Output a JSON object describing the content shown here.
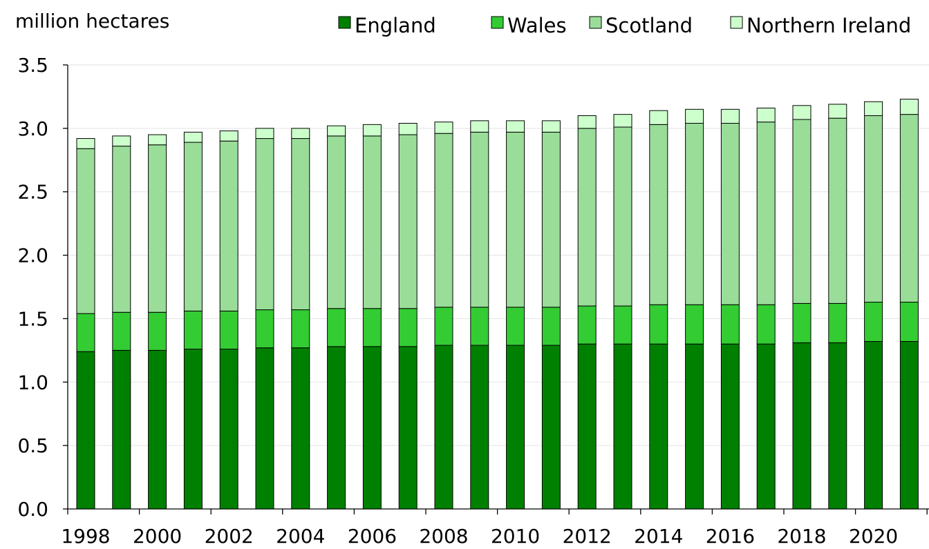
{
  "chart_data": {
    "type": "bar",
    "stacked": true,
    "title": "",
    "xlabel": "",
    "ylabel": "million hectares",
    "ylim": [
      0,
      3.5
    ],
    "yticks": [
      "0.0",
      "0.5",
      "1.0",
      "1.5",
      "2.0",
      "2.5",
      "3.0",
      "3.5"
    ],
    "categories": [
      "1998",
      "1999",
      "2000",
      "2001",
      "2002",
      "2003",
      "2004",
      "2005",
      "2006",
      "2007",
      "2008",
      "2009",
      "2010",
      "2011",
      "2012",
      "2013",
      "2014",
      "2015",
      "2016",
      "2017",
      "2018",
      "2019",
      "2020",
      "2021"
    ],
    "x_tick_labels": [
      "1998",
      "2000",
      "2002",
      "2004",
      "2006",
      "2008",
      "2010",
      "2012",
      "2014",
      "2016",
      "2018",
      "2020"
    ],
    "grid": "horizontal",
    "legend_position": "top",
    "series": [
      {
        "name": "England",
        "color": "#008000",
        "values": [
          1.24,
          1.25,
          1.25,
          1.26,
          1.26,
          1.27,
          1.27,
          1.28,
          1.28,
          1.28,
          1.29,
          1.29,
          1.29,
          1.29,
          1.3,
          1.3,
          1.3,
          1.3,
          1.3,
          1.3,
          1.31,
          1.31,
          1.32,
          1.32
        ]
      },
      {
        "name": "Wales",
        "color": "#33CC33",
        "values": [
          0.3,
          0.3,
          0.3,
          0.3,
          0.3,
          0.3,
          0.3,
          0.3,
          0.3,
          0.3,
          0.3,
          0.3,
          0.3,
          0.3,
          0.3,
          0.3,
          0.31,
          0.31,
          0.31,
          0.31,
          0.31,
          0.31,
          0.31,
          0.31
        ]
      },
      {
        "name": "Scotland",
        "color": "#99DD99",
        "values": [
          1.3,
          1.31,
          1.32,
          1.33,
          1.34,
          1.35,
          1.35,
          1.36,
          1.36,
          1.37,
          1.37,
          1.38,
          1.38,
          1.38,
          1.4,
          1.41,
          1.42,
          1.43,
          1.43,
          1.44,
          1.45,
          1.46,
          1.47,
          1.48
        ]
      },
      {
        "name": "Northern Ireland",
        "color": "#CCFFCC",
        "values": [
          0.08,
          0.08,
          0.08,
          0.08,
          0.08,
          0.08,
          0.08,
          0.08,
          0.09,
          0.09,
          0.09,
          0.09,
          0.09,
          0.09,
          0.1,
          0.1,
          0.11,
          0.11,
          0.11,
          0.11,
          0.11,
          0.11,
          0.11,
          0.12
        ]
      }
    ]
  }
}
